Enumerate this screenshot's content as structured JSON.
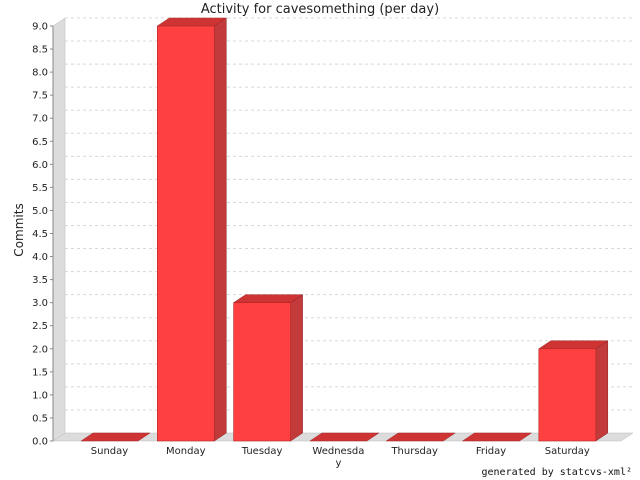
{
  "chart_data": {
    "type": "bar",
    "title": "Activity for cavesomething (per day)",
    "xlabel": "",
    "ylabel": "Commits",
    "categories": [
      "Sunday",
      "Monday",
      "Tuesday",
      "Wednesday",
      "Thursday",
      "Friday",
      "Saturday"
    ],
    "category_labels": [
      [
        "Sunday"
      ],
      [
        "Monday"
      ],
      [
        "Tuesday"
      ],
      [
        "Wednesda",
        "y"
      ],
      [
        "Thursday"
      ],
      [
        "Friday"
      ],
      [
        "Saturday"
      ]
    ],
    "values": [
      0,
      9,
      3,
      0,
      0,
      0,
      2
    ],
    "ylim": [
      0,
      9.0
    ],
    "yticks": [
      "0.0",
      "0.5",
      "1.0",
      "1.5",
      "2.0",
      "2.5",
      "3.0",
      "3.5",
      "4.0",
      "4.5",
      "5.0",
      "5.5",
      "6.0",
      "6.5",
      "7.0",
      "7.5",
      "8.0",
      "8.5",
      "9.0"
    ],
    "grid": true,
    "bar_color": "#ff4040"
  },
  "footer": "generated by statcvs-xml²"
}
